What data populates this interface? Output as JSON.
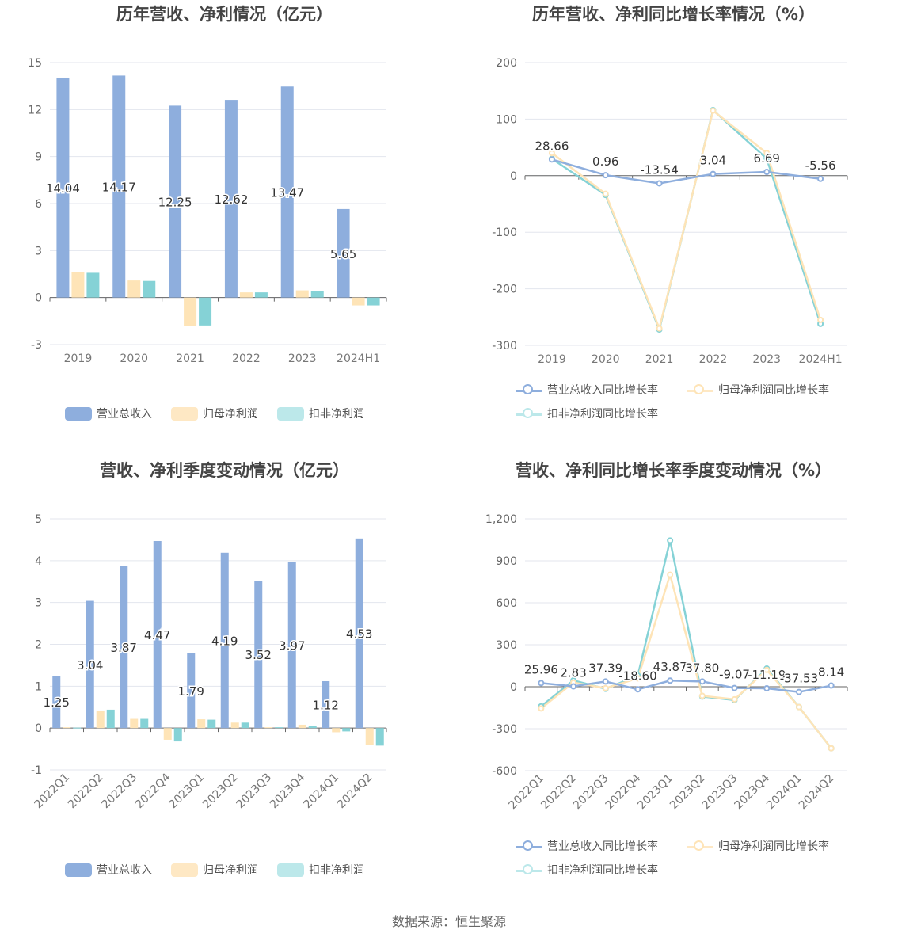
{
  "colors": {
    "revenue": "#8eaedd",
    "net_profit": "#fee4b7",
    "deducted_profit": "#85d2d6",
    "legend_net_profit": "#fee8c4",
    "legend_deducted_profit": "#bce8ea"
  },
  "source": "数据来源：恒生聚源",
  "chart_data": [
    {
      "type": "bar",
      "title": "历年营收、净利情况（亿元）",
      "categories": [
        "2019",
        "2020",
        "2021",
        "2022",
        "2023",
        "2024H1"
      ],
      "ylim": [
        -3,
        15
      ],
      "yticks": [
        "15",
        "12",
        "9",
        "6",
        "3",
        "0",
        "-3"
      ],
      "series": [
        {
          "name": "营业总收入",
          "values": [
            14.04,
            14.17,
            12.25,
            12.62,
            13.47,
            5.65
          ],
          "labels": [
            "14.04",
            "14.17",
            "12.25",
            "12.62",
            "13.47",
            "5.65"
          ]
        },
        {
          "name": "归母净利润",
          "values": [
            1.62,
            1.09,
            -1.82,
            0.33,
            0.46,
            -0.5
          ]
        },
        {
          "name": "扣非净利润",
          "values": [
            1.58,
            1.06,
            -1.78,
            0.33,
            0.4,
            -0.5
          ]
        }
      ]
    },
    {
      "type": "line",
      "title": "历年营收、净利同比增长率情况（%）",
      "categories": [
        "2019",
        "2020",
        "2021",
        "2022",
        "2023",
        "2024H1"
      ],
      "ylim": [
        -300,
        200
      ],
      "yticks": [
        "200",
        "100",
        "0",
        "-100",
        "-200",
        "-300"
      ],
      "series": [
        {
          "name": "营业总收入同比增长率",
          "values": [
            28.66,
            0.96,
            -13.54,
            3.04,
            6.69,
            -5.56
          ],
          "labels": [
            "28.66",
            "0.96",
            "-13.54",
            "3.04",
            "6.69",
            "-5.56"
          ]
        },
        {
          "name": "归母净利润同比增长率",
          "values": [
            40,
            -32,
            -270,
            115,
            40,
            -255
          ]
        },
        {
          "name": "扣非净利润同比增长率",
          "values": [
            30,
            -34,
            -272,
            116,
            30,
            -262
          ]
        }
      ]
    },
    {
      "type": "bar",
      "title": "营收、净利季度变动情况（亿元）",
      "categories": [
        "2022Q1",
        "2022Q2",
        "2022Q3",
        "2022Q4",
        "2023Q1",
        "2023Q2",
        "2023Q3",
        "2023Q4",
        "2024Q1",
        "2024Q2"
      ],
      "ylim": [
        -1,
        5
      ],
      "yticks": [
        "5",
        "4",
        "3",
        "2",
        "1",
        "0",
        "-1"
      ],
      "series": [
        {
          "name": "营业总收入",
          "values": [
            1.25,
            3.04,
            3.87,
            4.47,
            1.79,
            4.19,
            3.52,
            3.97,
            1.12,
            4.53
          ],
          "labels": [
            "1.25",
            "3.04",
            "3.87",
            "4.47",
            "1.79",
            "4.19",
            "3.52",
            "3.97",
            "1.12",
            "4.53"
          ]
        },
        {
          "name": "归母净利润",
          "values": [
            0.02,
            0.42,
            0.22,
            -0.28,
            0.21,
            0.13,
            0.02,
            0.08,
            -0.1,
            -0.4
          ]
        },
        {
          "name": "扣非净利润",
          "values": [
            0.01,
            0.44,
            0.22,
            -0.32,
            0.2,
            0.13,
            0.02,
            0.05,
            -0.08,
            -0.42
          ]
        }
      ]
    },
    {
      "type": "line",
      "title": "营收、净利同比增长率季度变动情况（%）",
      "categories": [
        "2022Q1",
        "2022Q2",
        "2022Q3",
        "2022Q4",
        "2023Q1",
        "2023Q2",
        "2023Q3",
        "2023Q4",
        "2024Q1",
        "2024Q2"
      ],
      "ylim": [
        -600,
        1200
      ],
      "yticks": [
        "1,200",
        "900",
        "600",
        "300",
        "0",
        "-300",
        "-600"
      ],
      "series": [
        {
          "name": "营业总收入同比增长率",
          "values": [
            25.96,
            2.83,
            37.39,
            -18.6,
            43.87,
            37.8,
            -9.07,
            -11.19,
            -37.53,
            8.14
          ],
          "labels": [
            "25.96",
            "2.83",
            "37.39",
            "-18.60",
            "43.87",
            "37.80",
            "-9.07",
            "-11.19",
            "-37.53",
            "8.14"
          ]
        },
        {
          "name": "归母净利润同比增长率",
          "values": [
            -155,
            30,
            -10,
            60,
            800,
            -65,
            -90,
            120,
            -145,
            -440
          ]
        },
        {
          "name": "扣非净利润同比增长率",
          "values": [
            -140,
            45,
            -15,
            80,
            1045,
            -70,
            -95,
            130,
            -145,
            -440
          ]
        }
      ]
    }
  ]
}
